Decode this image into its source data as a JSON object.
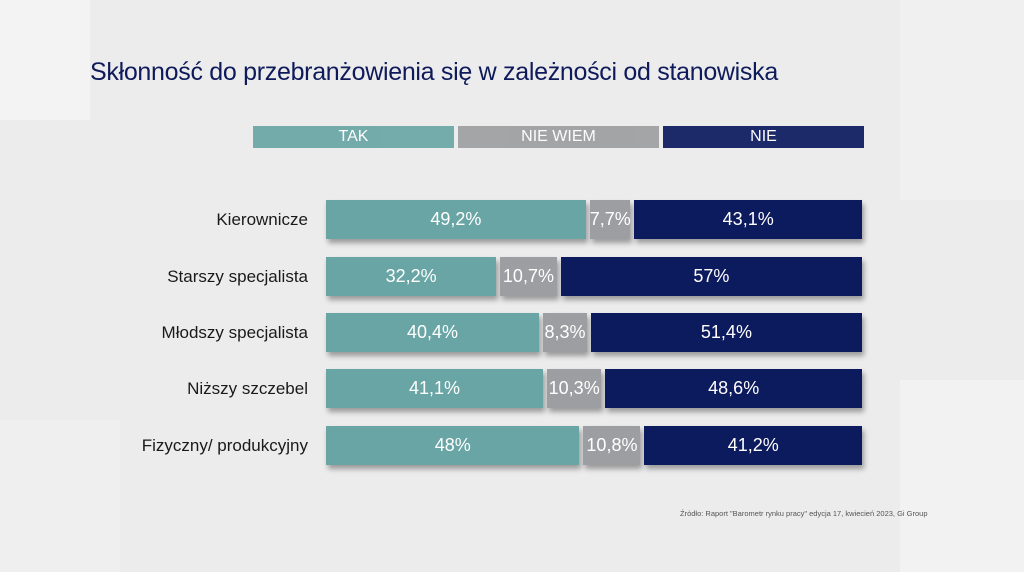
{
  "title": "Skłonność do przebranżowienia się w zależności od stanowiska",
  "source": "Źródło: Raport \"Barometr rynku pracy\" edycja 17, kwiecień 2023, Gi Group",
  "colors": {
    "tak": "#69a5a5",
    "nie_wiem": "#9d9ea1",
    "nie": "#0c1a5e"
  },
  "chart_data": {
    "type": "bar",
    "orientation": "horizontal",
    "stacked": true,
    "title": "Skłonność do przebranżowienia się w zależności od stanowiska",
    "xlabel": "",
    "ylabel": "",
    "xlim": [
      0,
      100
    ],
    "grid": false,
    "legend_position": "top",
    "legend": [
      "TAK",
      "NIE WIEM",
      "NIE"
    ],
    "categories": [
      "Kierownicze",
      "Starszy specjalista",
      "Młodszy specjalista",
      "Niższy szczebel",
      "Fizyczny/ produkcyjny"
    ],
    "series": [
      {
        "name": "TAK",
        "values": [
          49.2,
          32.2,
          40.4,
          41.1,
          48.0
        ],
        "labels": [
          "49,2%",
          "32,2%",
          "40,4%",
          "41,1%",
          "48%"
        ]
      },
      {
        "name": "NIE WIEM",
        "values": [
          7.7,
          10.7,
          8.3,
          10.3,
          10.8
        ],
        "labels": [
          "7,7%",
          "10,7%",
          "8,3%",
          "10,3%",
          "10,8%"
        ]
      },
      {
        "name": "NIE",
        "values": [
          43.1,
          57.0,
          51.4,
          48.6,
          41.2
        ],
        "labels": [
          "43,1%",
          "57%",
          "51,4%",
          "48,6%",
          "41,2%"
        ]
      }
    ]
  }
}
